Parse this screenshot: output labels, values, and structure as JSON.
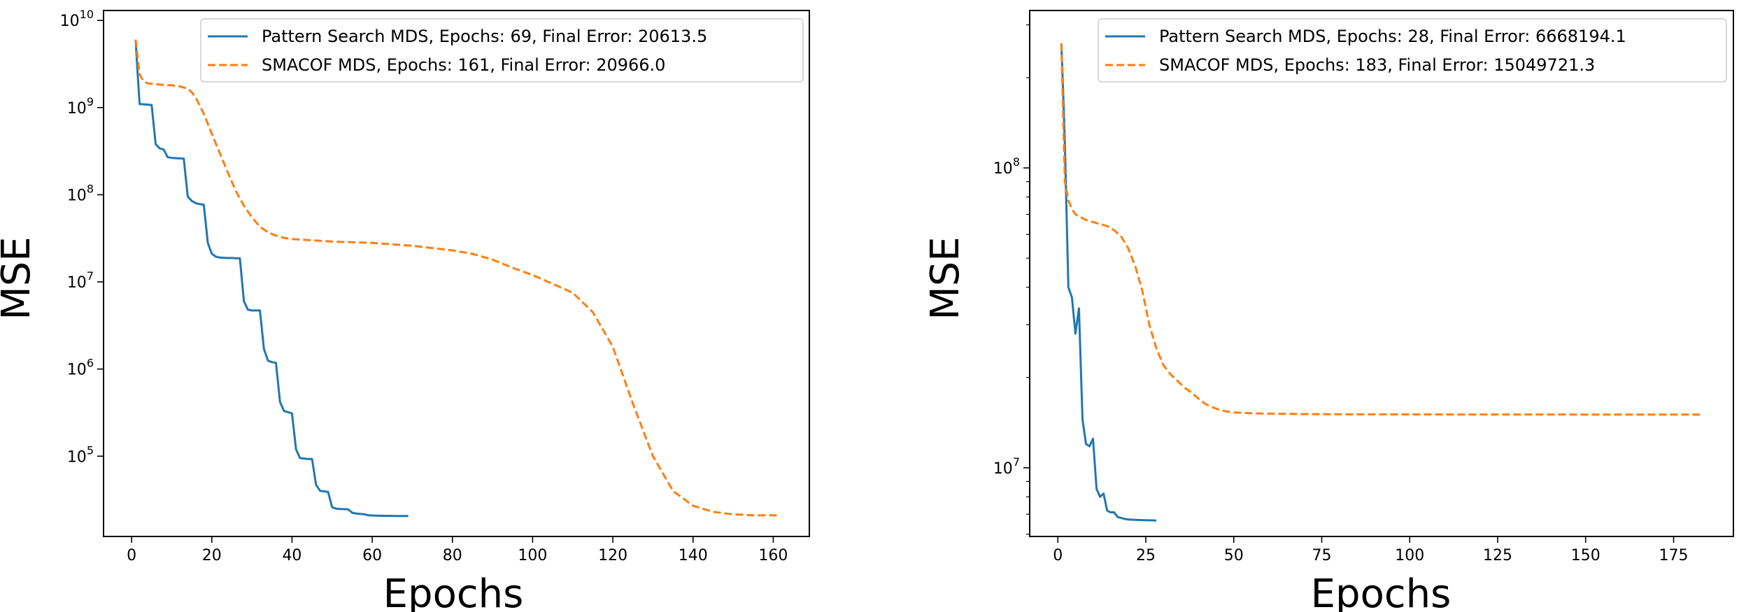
{
  "chart_data": [
    {
      "type": "line",
      "title": "",
      "xlabel": "Epochs",
      "ylabel": "MSE",
      "xscale": "linear",
      "yscale": "log",
      "xlim": [
        -7,
        169
      ],
      "ylim": [
        12000,
        13000000000
      ],
      "xticks": [
        0,
        20,
        40,
        60,
        80,
        100,
        120,
        140,
        160
      ],
      "yticks": [
        {
          "value": 100000,
          "base": "10",
          "exp": "5"
        },
        {
          "value": 1000000,
          "base": "10",
          "exp": "6"
        },
        {
          "value": 10000000,
          "base": "10",
          "exp": "7"
        },
        {
          "value": 100000000,
          "base": "10",
          "exp": "8"
        },
        {
          "value": 1000000000,
          "base": "10",
          "exp": "9"
        },
        {
          "value": 10000000000,
          "base": "10",
          "exp": "10"
        }
      ],
      "grid": false,
      "legend_position": "top-right",
      "series": [
        {
          "name": "Pattern Search MDS, Epochs: 69, Final Error: 20613.5",
          "color": "#1f77b4",
          "style": "solid",
          "x": [
            1,
            1.5,
            2,
            3,
            4,
            5,
            6,
            7,
            8,
            9,
            10,
            11,
            12,
            13,
            14,
            15,
            16,
            17,
            18,
            19,
            20,
            21,
            22,
            23,
            24,
            25,
            26,
            27,
            28,
            29,
            30,
            31,
            32,
            33,
            34,
            35,
            36,
            37,
            38,
            39,
            40,
            41,
            42,
            43,
            44,
            45,
            46,
            47,
            48,
            49,
            50,
            51,
            52,
            53,
            54,
            55,
            56,
            57,
            58,
            59,
            60,
            61,
            62,
            63,
            64,
            65,
            66,
            67,
            68,
            69
          ],
          "y": [
            6000000000,
            2500000000,
            1100000000,
            1090000000,
            1080000000,
            1070000000,
            380000000,
            340000000,
            330000000,
            270000000,
            265000000,
            263000000,
            261000000,
            260000000,
            95000000,
            85000000,
            80000000,
            78000000,
            77000000,
            28000000,
            21000000,
            19500000,
            19000000,
            18900000,
            18800000,
            18800000,
            18700000,
            18700000,
            6000000,
            4800000,
            4700000,
            4700000,
            4700000,
            1700000,
            1250000,
            1200000,
            1180000,
            420000,
            330000,
            320000,
            310000,
            120000,
            95000,
            94000,
            93000,
            93000,
            47000,
            40000,
            39500,
            39000,
            26000,
            25000,
            24800,
            24700,
            24600,
            22500,
            22000,
            21800,
            21600,
            21000,
            20900,
            20800,
            20750,
            20700,
            20680,
            20660,
            20640,
            20630,
            20620,
            20613.5
          ]
        },
        {
          "name": "SMACOF MDS, Epochs: 161, Final Error: 20966.0",
          "color": "#ff7f0e",
          "style": "dashed",
          "x": [
            1,
            2,
            3,
            4,
            6,
            8,
            10,
            12,
            14,
            15,
            16,
            17,
            18,
            19,
            20,
            22,
            24,
            26,
            28,
            30,
            32,
            34,
            36,
            38,
            40,
            45,
            50,
            60,
            70,
            80,
            85,
            90,
            95,
            100,
            105,
            110,
            115,
            120,
            125,
            130,
            135,
            140,
            145,
            150,
            155,
            161
          ],
          "y": [
            6000000000,
            2400000000,
            2000000000,
            1900000000,
            1850000000,
            1820000000,
            1800000000,
            1750000000,
            1650000000,
            1500000000,
            1300000000,
            1050000000,
            850000000,
            650000000,
            500000000,
            300000000,
            180000000,
            110000000,
            75000000,
            55000000,
            43000000,
            37000000,
            34000000,
            32000000,
            31000000,
            30000000,
            29000000,
            28000000,
            26000000,
            23000000,
            21000000,
            18000000,
            14500000,
            12000000,
            9500000,
            7500000,
            4500000,
            1800000,
            400000,
            100000,
            40000,
            27000,
            23000,
            21500,
            21000,
            20966.0
          ]
        }
      ]
    },
    {
      "type": "line",
      "title": "",
      "xlabel": "Epochs",
      "ylabel": "MSE",
      "xscale": "linear",
      "yscale": "log",
      "xlim": [
        -8,
        192
      ],
      "ylim": [
        5900000,
        335000000
      ],
      "xticks": [
        0,
        25,
        50,
        75,
        100,
        125,
        150,
        175
      ],
      "yticks": [
        {
          "value": 10000000,
          "base": "10",
          "exp": "7"
        },
        {
          "value": 100000000,
          "base": "10",
          "exp": "8"
        }
      ],
      "minor_yticks": [
        6000000,
        7000000,
        8000000,
        9000000,
        20000000,
        30000000,
        40000000,
        50000000,
        60000000,
        70000000,
        80000000,
        90000000,
        200000000,
        300000000
      ],
      "grid": false,
      "legend_position": "top-right",
      "series": [
        {
          "name": "Pattern Search MDS, Epochs: 28, Final Error: 6668194.1",
          "color": "#1f77b4",
          "style": "solid",
          "x": [
            1,
            1.5,
            2,
            3,
            4,
            5,
            6,
            7,
            8,
            9,
            10,
            11,
            12,
            13,
            14,
            15,
            16,
            17,
            18,
            19,
            20,
            22,
            24,
            26,
            28
          ],
          "y": [
            260000000,
            180000000,
            120000000,
            40000000,
            37000000,
            28000000,
            34000000,
            14500000,
            12000000,
            11800000,
            12500000,
            8500000,
            8000000,
            8200000,
            7200000,
            7100000,
            7100000,
            6850000,
            6800000,
            6750000,
            6720000,
            6700000,
            6690000,
            6680000,
            6668194.1
          ]
        },
        {
          "name": "SMACOF MDS, Epochs: 183, Final Error: 15049721.3",
          "color": "#ff7f0e",
          "style": "dashed",
          "x": [
            1,
            1.5,
            2,
            3,
            4,
            5,
            6,
            8,
            10,
            12,
            14,
            16,
            18,
            20,
            22,
            24,
            26,
            28,
            30,
            32,
            34,
            36,
            38,
            40,
            42,
            44,
            46,
            48,
            50,
            55,
            60,
            70,
            80,
            100,
            120,
            150,
            183
          ],
          "y": [
            260000000,
            150000000,
            90000000,
            78000000,
            73000000,
            70000000,
            69000000,
            67000000,
            66000000,
            65000000,
            64000000,
            62000000,
            59000000,
            54000000,
            47000000,
            39000000,
            30000000,
            25000000,
            22000000,
            20500000,
            19500000,
            18500000,
            17800000,
            17000000,
            16300000,
            15900000,
            15600000,
            15400000,
            15300000,
            15200000,
            15150000,
            15100000,
            15080000,
            15060000,
            15055000,
            15050000,
            15049721.3
          ]
        }
      ]
    }
  ]
}
